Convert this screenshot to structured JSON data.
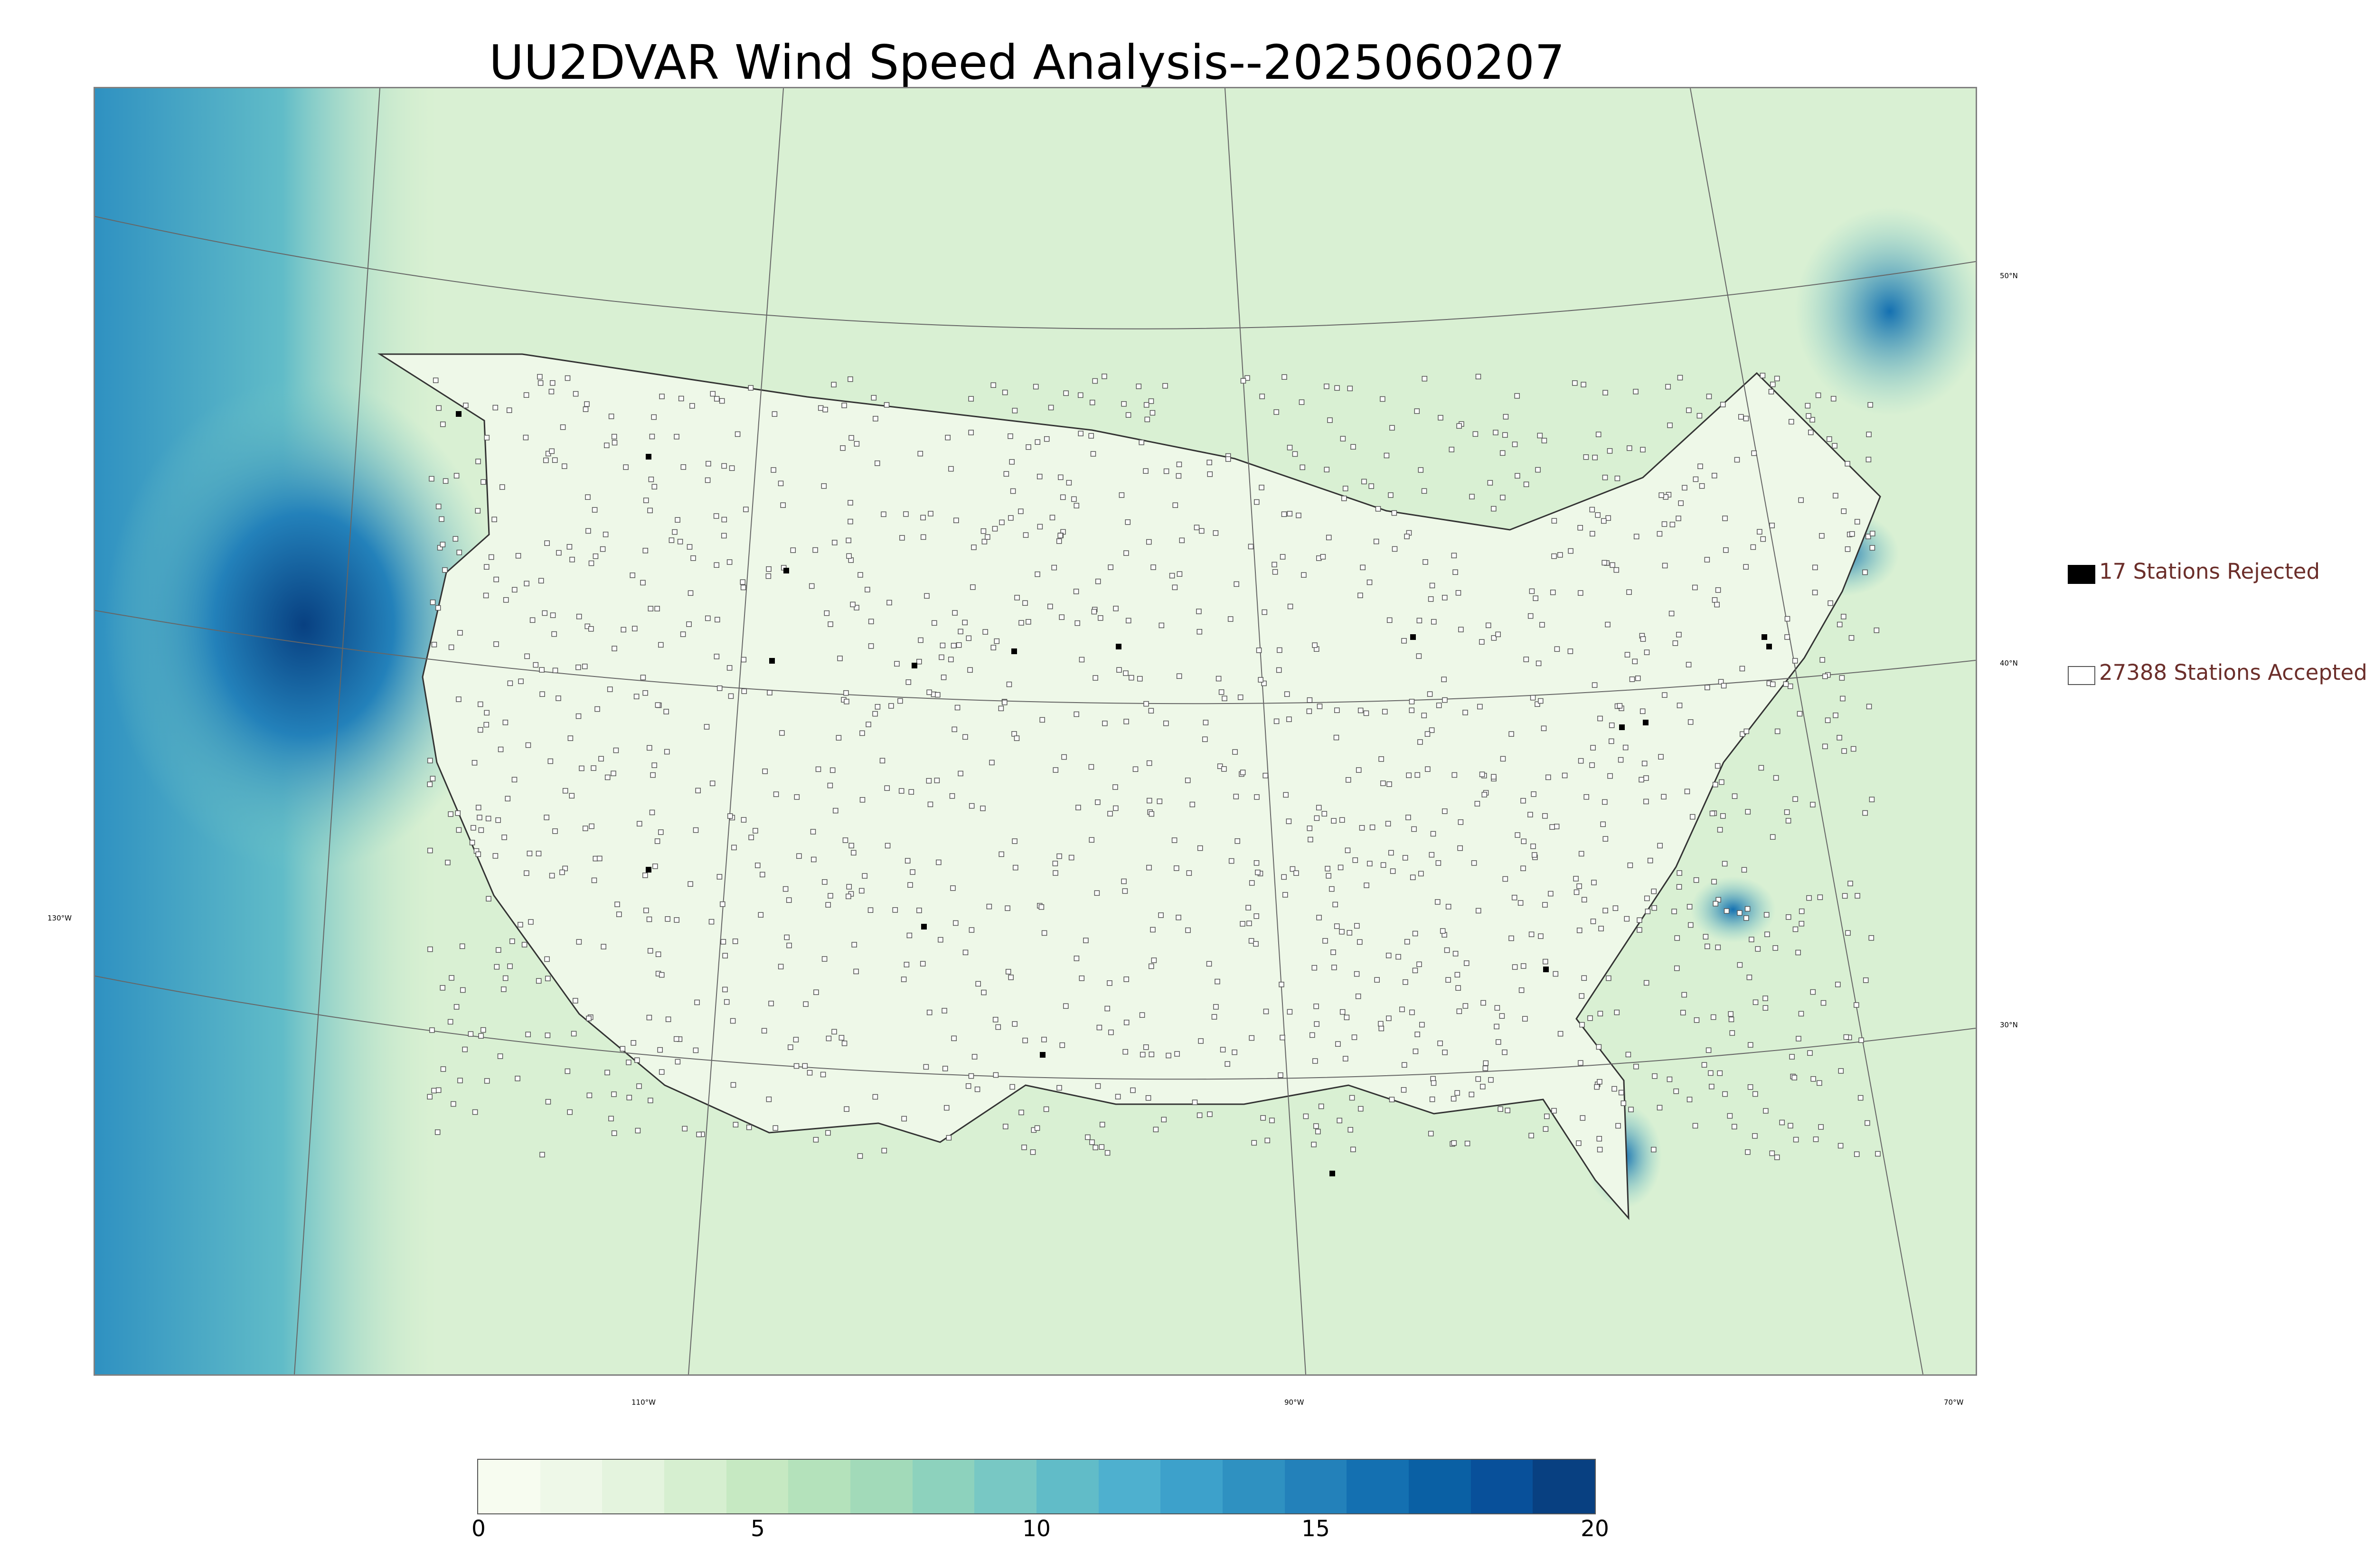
{
  "title": "UU2DVAR Wind Speed Analysis--2025060207",
  "map": {
    "projection": "lambert-conformal",
    "background_field": "wind speed shading",
    "lat_labels": [
      "50°N",
      "40°N",
      "30°N"
    ],
    "lon_labels": [
      "130°W",
      "110°W",
      "90°W",
      "70°W"
    ]
  },
  "legend": {
    "rejected_label": "17 Stations Rejected",
    "accepted_label": "27388 Stations Accepted",
    "rejected_color": "#000000",
    "accepted_color": "#ffffff"
  },
  "colorbar": {
    "ticks": [
      "0",
      "5",
      "10",
      "15",
      "20"
    ],
    "min": 0,
    "max": 20,
    "colors": [
      "#f7fcf0",
      "#eef8e8",
      "#e4f4de",
      "#d6efd0",
      "#c6e9c2",
      "#b4e2bb",
      "#a2dab9",
      "#8dd2bd",
      "#78c8c4",
      "#61bcc8",
      "#4eb0cf",
      "#3da1cb",
      "#2f91c1",
      "#2381ba",
      "#1470b1",
      "#0a60a4",
      "#08509a",
      "#084081"
    ]
  }
}
